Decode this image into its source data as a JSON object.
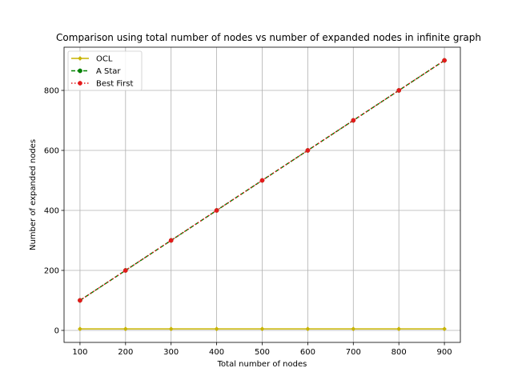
{
  "chart_data": {
    "type": "line",
    "title": "Comparison using total number of nodes vs number of expanded nodes in infinite graph",
    "xlabel": "Total number of nodes",
    "ylabel": "Number of expanded nodes",
    "x": [
      100,
      200,
      300,
      400,
      500,
      600,
      700,
      800,
      900
    ],
    "xlim": [
      65,
      935
    ],
    "ylim": [
      -40,
      944
    ],
    "xticks": [
      "100",
      "200",
      "300",
      "400",
      "500",
      "600",
      "700",
      "800",
      "900"
    ],
    "yticks": [
      "0",
      "200",
      "400",
      "600",
      "800"
    ],
    "grid": true,
    "legend_position": "top-left",
    "series": [
      {
        "name": "OCL",
        "values": [
          5,
          5,
          5,
          5,
          5,
          5,
          5,
          5,
          5
        ],
        "color": "#c8b400",
        "line_style": "solid",
        "marker": "diamond"
      },
      {
        "name": "A Star",
        "values": [
          100,
          200,
          300,
          400,
          500,
          600,
          700,
          800,
          900
        ],
        "color": "#008000",
        "line_style": "dashed",
        "marker": "circle"
      },
      {
        "name": "Best First",
        "values": [
          100,
          200,
          300,
          400,
          500,
          600,
          700,
          800,
          900
        ],
        "color": "#e41a1c",
        "line_style": "dotted",
        "marker": "circle"
      }
    ]
  }
}
